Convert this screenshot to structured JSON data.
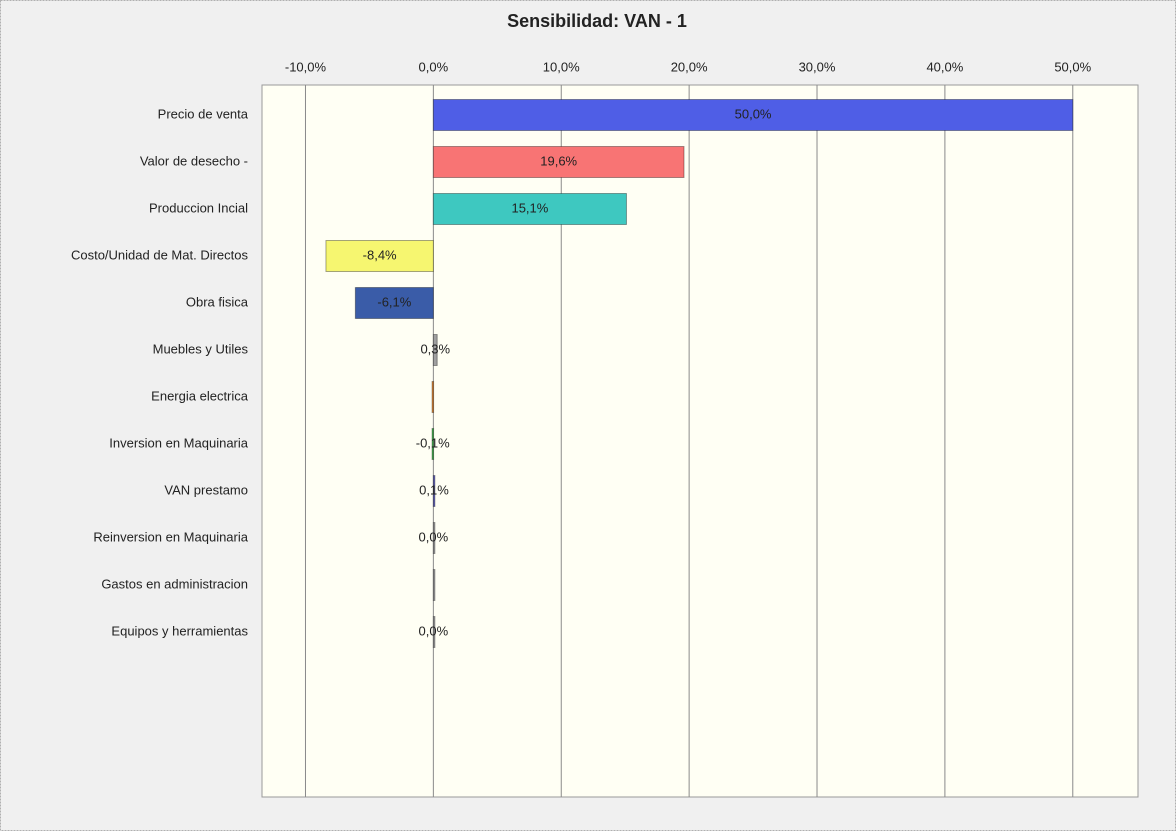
{
  "chart_data": {
    "type": "bar",
    "orientation": "horizontal",
    "title": "Sensibilidad: VAN - 1",
    "categories": [
      "Precio de venta",
      "Valor de desecho -",
      "Produccion Incial",
      "Costo/Unidad de Mat. Directos",
      "Obra fisica",
      "Muebles y Utiles",
      "Energia electrica",
      "Inversion en Maquinaria",
      "VAN prestamo",
      "Reinversion en Maquinaria",
      "Gastos en administracion",
      "Equipos y herramientas"
    ],
    "values": [
      50.0,
      19.6,
      15.1,
      -8.4,
      -6.1,
      0.3,
      -0.1,
      -0.1,
      0.1,
      0.0,
      0.0,
      0.0
    ],
    "value_labels": [
      "50,0%",
      "19,6%",
      "15,1%",
      "-8,4%",
      "-6,1%",
      "0,3%",
      null,
      "-0,1%",
      "0,1%",
      "0,0%",
      null,
      "0,0%"
    ],
    "colors": [
      "#4f5ee6",
      "#f87474",
      "#3ec8c0",
      "#f6f670",
      "#3a5ca8",
      "#a0a0a0",
      "#e0822e",
      "#3cb04a",
      "#5c5cc0",
      "#a0a0a0",
      "#a0a0a0",
      "#a0a0a0"
    ],
    "xlim": [
      -13.4,
      55.1
    ],
    "xticks": [
      {
        "value": -10,
        "label": "-10,0%"
      },
      {
        "value": 0,
        "label": "0,0%"
      },
      {
        "value": 10,
        "label": "10,0%"
      },
      {
        "value": 20,
        "label": "20,0%"
      },
      {
        "value": 30,
        "label": "30,0%"
      },
      {
        "value": 40,
        "label": "40,0%"
      },
      {
        "value": 50,
        "label": "50,0%"
      }
    ],
    "grid": true
  }
}
